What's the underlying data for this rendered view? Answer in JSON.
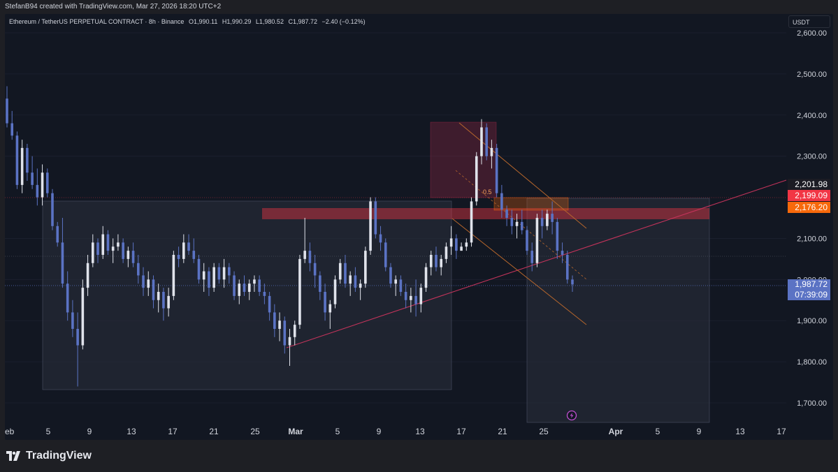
{
  "header": {
    "attribution": "StefanB94 created with TradingView.com, Mar 27, 2026 18:20 UTC+2"
  },
  "legend": {
    "symbol": "Ethereum / TetherUS PERPETUAL CONTRACT · 8h · Binance",
    "open": "O1,990.11",
    "high": "H1,990.29",
    "low": "L1,980.52",
    "close": "C1,987.72",
    "change": "−2.40 (−0.12%)"
  },
  "currency_button": "USDT",
  "price_axis": {
    "ticks": [
      "2,600.00",
      "2,500.00",
      "2,400.00",
      "2,300.00",
      "2,100.00",
      "2,000.00",
      "1,900.00",
      "1,800.00",
      "1,700.00"
    ],
    "labels": {
      "level1": {
        "text": "2,201.98",
        "color": "#1c1c24"
      },
      "level2": {
        "text": "2,199.09",
        "color": "#f23645"
      },
      "level3": {
        "text": "2,176.20",
        "color": "#f7690b"
      },
      "current": {
        "text": "1,987.72",
        "color": "#5b73c4"
      },
      "countdown": {
        "text": "07:39:09",
        "color": "#5b73c4"
      }
    }
  },
  "time_axis": {
    "ticks": [
      "eb",
      "5",
      "9",
      "13",
      "17",
      "21",
      "25",
      "Mar",
      "5",
      "9",
      "13",
      "17",
      "21",
      "25",
      "Apr",
      "5",
      "9",
      "13",
      "17"
    ]
  },
  "annotations": {
    "fib_label": "0.5"
  },
  "colors": {
    "background": "#121722",
    "up": "#e0e3eb",
    "down": "#5b73c4",
    "resistance": "#f23645",
    "trendline": "#c2335a",
    "channel": "#b8672c"
  },
  "footer": {
    "brand": "TradingView",
    "brand_icon": "tradingview-logo-icon"
  },
  "chart_data": {
    "type": "candlestick",
    "symbol": "Ethereum / TetherUS PERPETUAL CONTRACT",
    "interval": "8h",
    "ylim": [
      1650,
      2620
    ],
    "candles": [
      [
        2440,
        2470,
        2370,
        2380
      ],
      [
        2380,
        2410,
        2340,
        2350
      ],
      [
        2350,
        2360,
        2220,
        2230
      ],
      [
        2230,
        2340,
        2210,
        2320
      ],
      [
        2320,
        2330,
        2240,
        2260
      ],
      [
        2260,
        2300,
        2220,
        2230
      ],
      [
        2230,
        2270,
        2180,
        2200
      ],
      [
        2200,
        2280,
        2180,
        2260
      ],
      [
        2260,
        2270,
        2200,
        2210
      ],
      [
        2210,
        2220,
        2120,
        2130
      ],
      [
        2130,
        2140,
        2080,
        2090
      ],
      [
        2090,
        2150,
        1980,
        1990
      ],
      [
        1990,
        2020,
        1900,
        1920
      ],
      [
        1920,
        1950,
        1860,
        1880
      ],
      [
        1880,
        1920,
        1740,
        1840
      ],
      [
        1840,
        2000,
        1830,
        1980
      ],
      [
        1980,
        2060,
        1960,
        2040
      ],
      [
        2040,
        2110,
        2030,
        2090
      ],
      [
        2090,
        2100,
        2040,
        2060
      ],
      [
        2060,
        2130,
        2050,
        2110
      ],
      [
        2110,
        2120,
        2060,
        2070
      ],
      [
        2070,
        2100,
        2040,
        2080
      ],
      [
        2080,
        2110,
        2070,
        2090
      ],
      [
        2090,
        2100,
        2040,
        2050
      ],
      [
        2050,
        2080,
        2030,
        2070
      ],
      [
        2070,
        2090,
        2030,
        2040
      ],
      [
        2040,
        2060,
        1990,
        2010
      ],
      [
        2010,
        2030,
        1960,
        1980
      ],
      [
        1980,
        2020,
        1960,
        2000
      ],
      [
        2000,
        2010,
        1930,
        1950
      ],
      [
        1950,
        1990,
        1920,
        1970
      ],
      [
        1970,
        1980,
        1900,
        1930
      ],
      [
        1930,
        1980,
        1910,
        1960
      ],
      [
        1960,
        2070,
        1950,
        2060
      ],
      [
        2060,
        2080,
        2030,
        2050
      ],
      [
        2050,
        2110,
        2040,
        2090
      ],
      [
        2090,
        2110,
        2060,
        2070
      ],
      [
        2070,
        2100,
        2040,
        2050
      ],
      [
        2050,
        2060,
        1990,
        2000
      ],
      [
        2000,
        2040,
        1970,
        2020
      ],
      [
        2020,
        2030,
        1960,
        1980
      ],
      [
        1980,
        2040,
        1970,
        2030
      ],
      [
        2030,
        2040,
        1990,
        2000
      ],
      [
        2000,
        2050,
        1980,
        2030
      ],
      [
        2030,
        2040,
        1990,
        2010
      ],
      [
        2010,
        2020,
        1950,
        1960
      ],
      [
        1960,
        2000,
        1940,
        1990
      ],
      [
        1990,
        2010,
        1960,
        1970
      ],
      [
        1970,
        2000,
        1950,
        1990
      ],
      [
        1990,
        2010,
        1970,
        2000
      ],
      [
        2000,
        2010,
        1960,
        1970
      ],
      [
        1970,
        1990,
        1940,
        1960
      ],
      [
        1960,
        1970,
        1900,
        1920
      ],
      [
        1920,
        1940,
        1860,
        1880
      ],
      [
        1880,
        1920,
        1850,
        1900
      ],
      [
        1900,
        1910,
        1820,
        1840
      ],
      [
        1840,
        1880,
        1790,
        1860
      ],
      [
        1860,
        1900,
        1840,
        1890
      ],
      [
        1890,
        2060,
        1880,
        2050
      ],
      [
        2050,
        2150,
        2040,
        2070
      ],
      [
        2070,
        2090,
        2020,
        2040
      ],
      [
        2040,
        2060,
        1980,
        2010
      ],
      [
        2010,
        2020,
        1950,
        1970
      ],
      [
        1970,
        1990,
        1900,
        1920
      ],
      [
        1920,
        1950,
        1880,
        1940
      ],
      [
        1940,
        2010,
        1930,
        2000
      ],
      [
        2000,
        2050,
        1990,
        2040
      ],
      [
        2040,
        2060,
        1980,
        1990
      ],
      [
        1990,
        2020,
        1960,
        2010
      ],
      [
        2010,
        2030,
        1970,
        1980
      ],
      [
        1980,
        2000,
        1950,
        1990
      ],
      [
        1990,
        2080,
        1980,
        2070
      ],
      [
        2070,
        2200,
        2060,
        2190
      ],
      [
        2190,
        2200,
        2100,
        2110
      ],
      [
        2110,
        2130,
        2070,
        2090
      ],
      [
        2090,
        2100,
        2020,
        2030
      ],
      [
        2030,
        2040,
        1980,
        1990
      ],
      [
        1990,
        2010,
        1960,
        2000
      ],
      [
        2000,
        2010,
        1960,
        1970
      ],
      [
        1970,
        1990,
        1930,
        1950
      ],
      [
        1950,
        1980,
        1920,
        1960
      ],
      [
        1960,
        2000,
        1910,
        1940
      ],
      [
        1940,
        1990,
        1920,
        1980
      ],
      [
        1980,
        2040,
        1970,
        2030
      ],
      [
        2030,
        2070,
        2010,
        2060
      ],
      [
        2060,
        2080,
        2020,
        2030
      ],
      [
        2030,
        2060,
        2010,
        2050
      ],
      [
        2050,
        2090,
        2040,
        2080
      ],
      [
        2080,
        2130,
        2060,
        2100
      ],
      [
        2100,
        2110,
        2050,
        2070
      ],
      [
        2070,
        2090,
        2070,
        2080
      ],
      [
        2080,
        2100,
        2070,
        2090
      ],
      [
        2090,
        2200,
        2080,
        2190
      ],
      [
        2190,
        2310,
        2180,
        2300
      ],
      [
        2300,
        2390,
        2280,
        2370
      ],
      [
        2370,
        2380,
        2290,
        2300
      ],
      [
        2300,
        2340,
        2270,
        2320
      ],
      [
        2320,
        2330,
        2200,
        2210
      ],
      [
        2210,
        2230,
        2150,
        2170
      ],
      [
        2170,
        2180,
        2130,
        2150
      ],
      [
        2150,
        2170,
        2110,
        2130
      ],
      [
        2130,
        2160,
        2100,
        2140
      ],
      [
        2140,
        2170,
        2110,
        2120
      ],
      [
        2120,
        2130,
        2060,
        2070
      ],
      [
        2070,
        2090,
        2020,
        2040
      ],
      [
        2040,
        2160,
        2030,
        2150
      ],
      [
        2150,
        2170,
        2100,
        2130
      ],
      [
        2130,
        2170,
        2120,
        2160
      ],
      [
        2160,
        2190,
        2110,
        2140
      ],
      [
        2140,
        2150,
        2050,
        2070
      ],
      [
        2070,
        2090,
        2040,
        2060
      ],
      [
        2060,
        2070,
        1990,
        2000
      ],
      [
        2000,
        2010,
        1970,
        1988
      ]
    ]
  }
}
